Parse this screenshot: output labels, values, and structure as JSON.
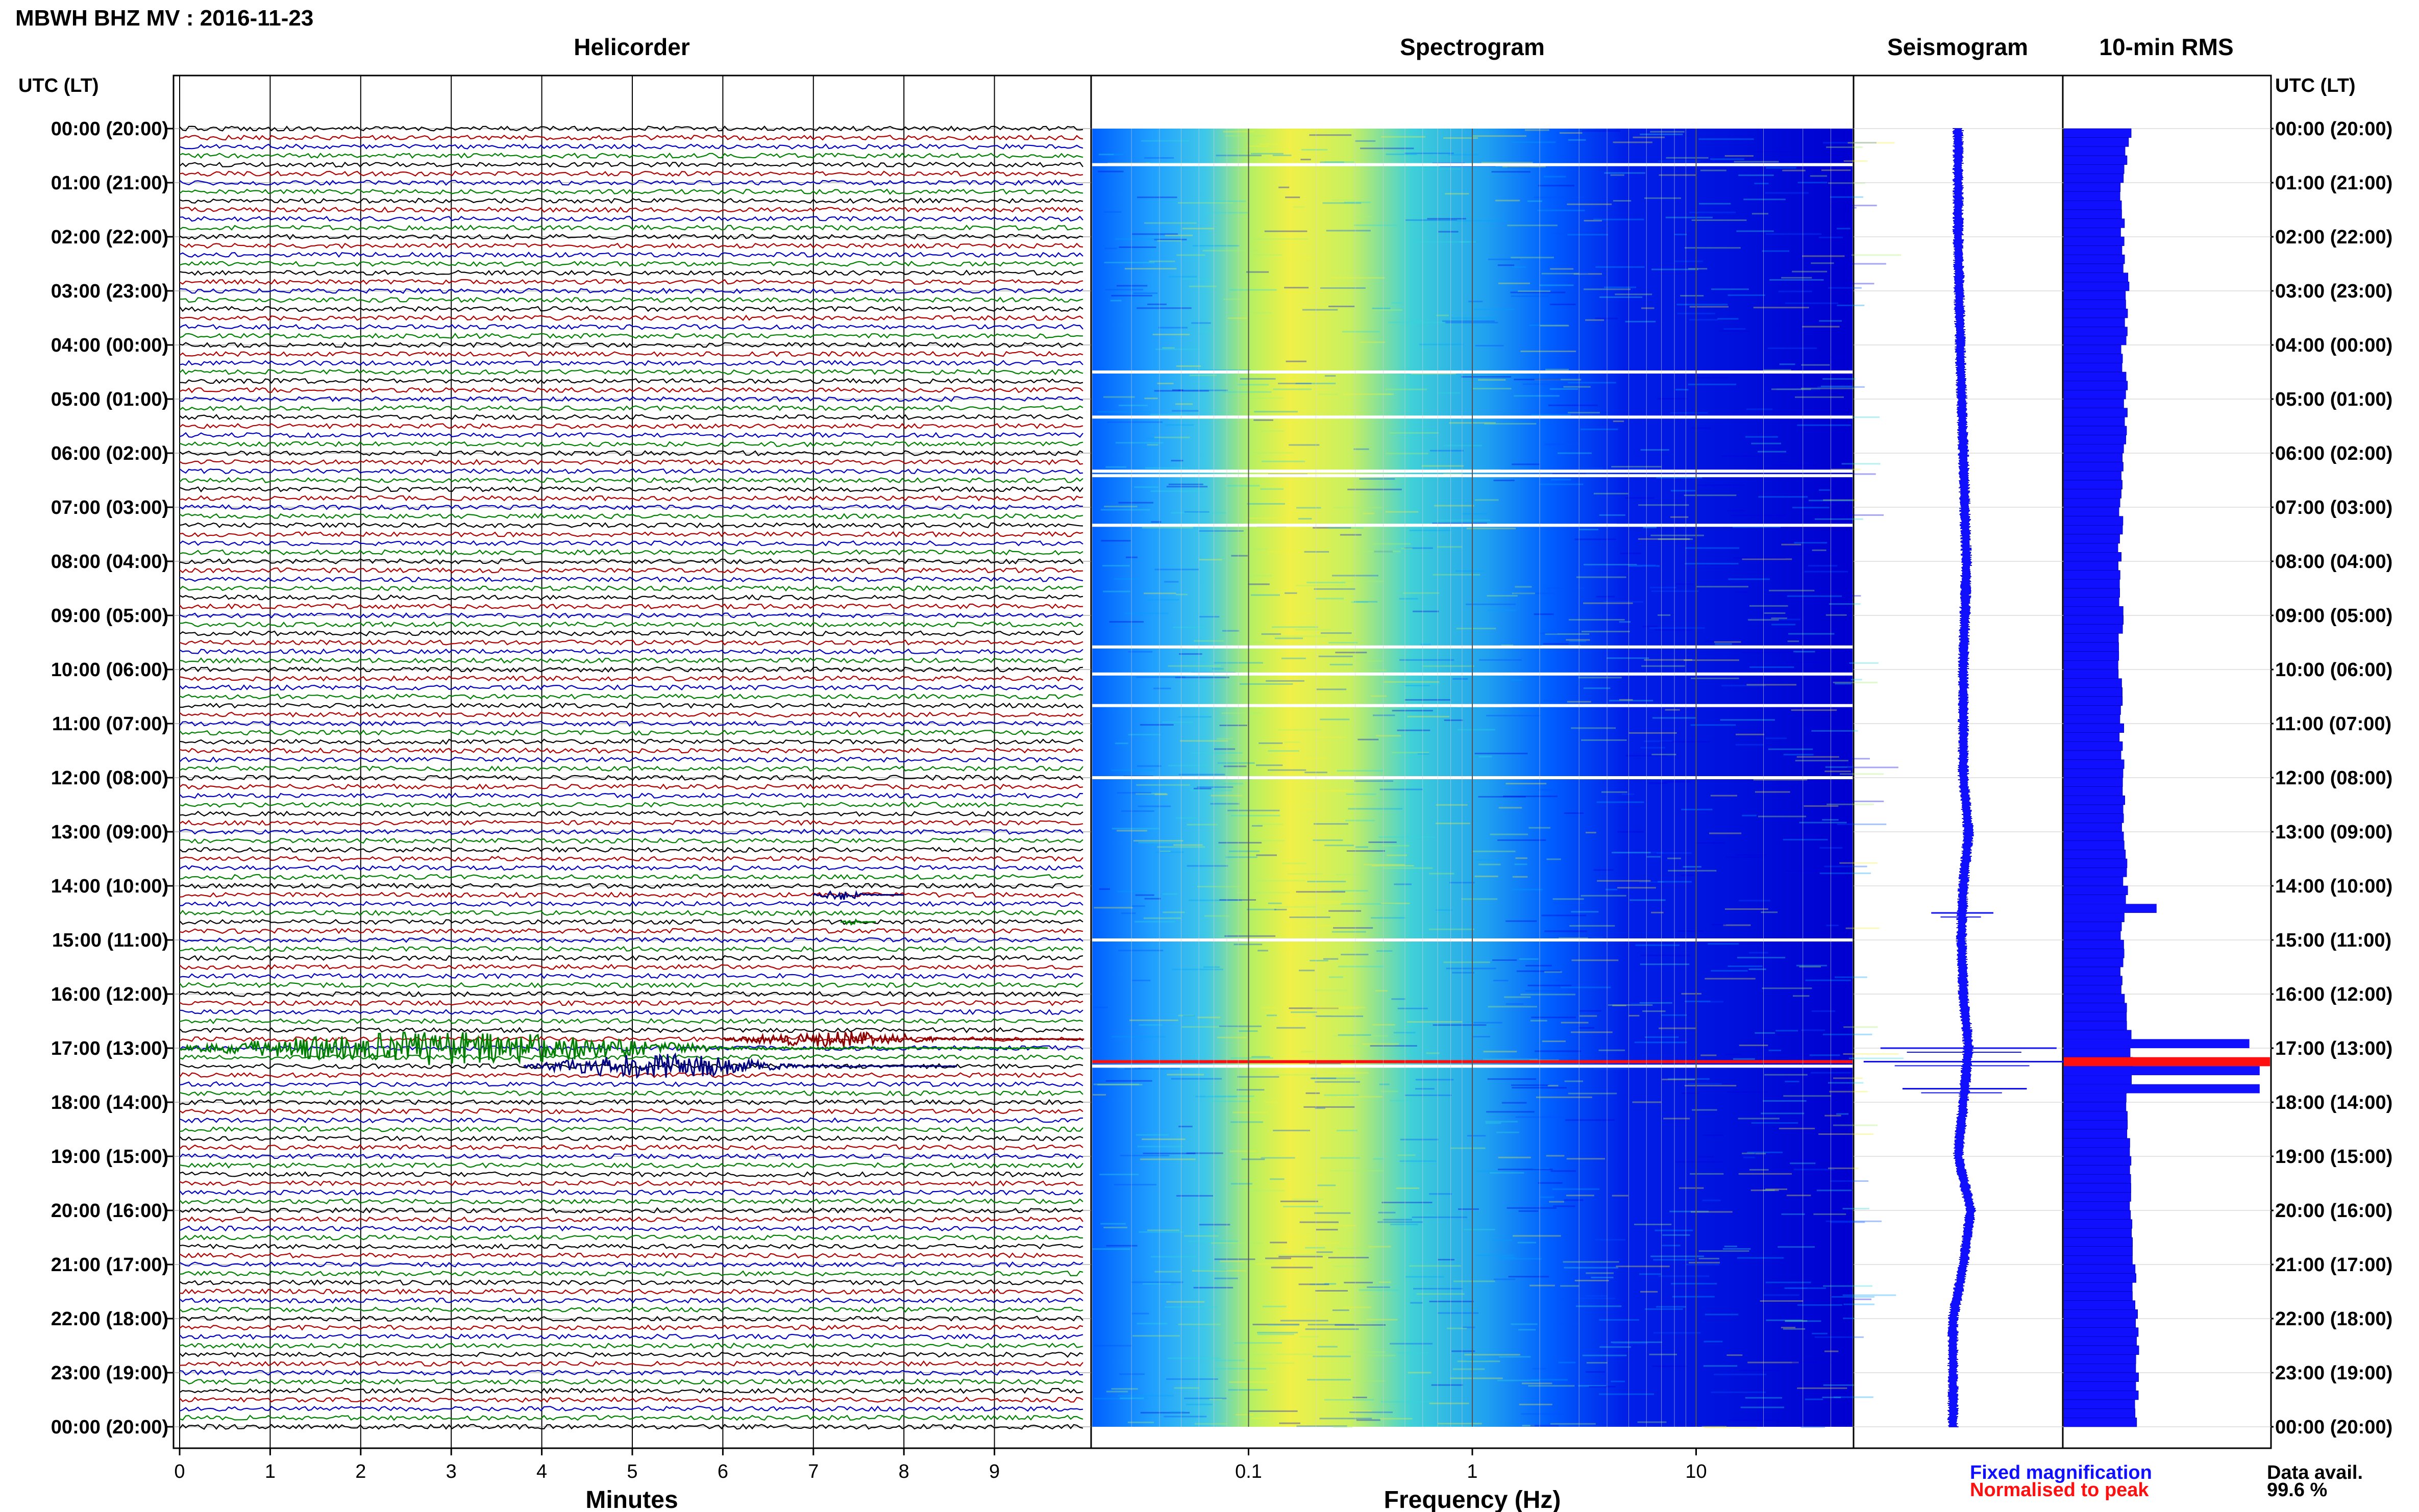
{
  "header": {
    "title": "MBWH BHZ MV : 2016-11-23"
  },
  "panels": {
    "helicorder_title": "Helicorder",
    "spectrogram_title": "Spectrogram",
    "seismogram_title": "Seismogram",
    "rms_title": "10-min RMS"
  },
  "axes": {
    "left_header": "UTC (LT)",
    "right_header": "UTC (LT)",
    "time_labels": [
      "00:00 (20:00)",
      "01:00 (21:00)",
      "02:00 (22:00)",
      "03:00 (23:00)",
      "04:00 (00:00)",
      "05:00 (01:00)",
      "06:00 (02:00)",
      "07:00 (03:00)",
      "08:00 (04:00)",
      "09:00 (05:00)",
      "10:00 (06:00)",
      "11:00 (07:00)",
      "12:00 (08:00)",
      "13:00 (09:00)",
      "14:00 (10:00)",
      "15:00 (11:00)",
      "16:00 (12:00)",
      "17:00 (13:00)",
      "18:00 (14:00)",
      "19:00 (15:00)",
      "20:00 (16:00)",
      "21:00 (17:00)",
      "22:00 (18:00)",
      "23:00 (19:00)",
      "00:00 (20:00)"
    ],
    "minutes_ticks": [
      "0",
      "1",
      "2",
      "3",
      "4",
      "5",
      "6",
      "7",
      "8",
      "9"
    ],
    "minutes_label": "Minutes",
    "freq_ticks": [
      "0.1",
      "1",
      "10"
    ],
    "freq_label": "Frequency (Hz)"
  },
  "legend": {
    "fixed": "Fixed magnification",
    "normalised": "Normalised to peak",
    "avail_label": "Data avail.",
    "avail_value": "99.6 %",
    "fixed_color": "#1010ff",
    "normalised_color": "#ff1010"
  },
  "chart_data": [
    {
      "type": "line",
      "name": "helicorder",
      "x_unit": "minutes",
      "xlim": [
        0,
        10
      ],
      "rows_per_hour": 6,
      "trace_colors": [
        "#000000",
        "#b00000",
        "#0000c0",
        "#008000"
      ],
      "events": [
        {
          "time_utc": "14:10",
          "start_min": 7.0,
          "end_min": 8.0,
          "peak_amp": 0.35,
          "color": "#000080"
        },
        {
          "time_utc": "14:40",
          "start_min": 7.3,
          "end_min": 7.7,
          "peak_amp": 0.2,
          "color": "#008000"
        },
        {
          "time_utc": "16:50",
          "start_min": 6.0,
          "end_min": 10.0,
          "peak_amp": 0.6,
          "color": "#8b0000"
        },
        {
          "time_utc": "17:00",
          "start_min": 0.0,
          "end_min": 9.6,
          "peak_amp": 1.2,
          "color": "#008000"
        },
        {
          "time_utc": "17:20",
          "start_min": 3.8,
          "end_min": 8.6,
          "peak_amp": 0.9,
          "color": "#000080"
        }
      ]
    },
    {
      "type": "heatmap",
      "name": "spectrogram",
      "x_scale": "log",
      "xlim": [
        0.02,
        50
      ],
      "colormap": [
        "#0000e0",
        "#0050ff",
        "#00a0ff",
        "#30d8e0",
        "#a8f070",
        "#f0f040"
      ],
      "band_peaks": [
        {
          "freq_hz": 0.25,
          "level": 0.95
        },
        {
          "freq_hz": 1.5,
          "level": 0.7
        },
        {
          "freq_hz": 4.0,
          "level": 0.35
        },
        {
          "freq_hz": 10.0,
          "level": 0.15
        }
      ],
      "gaps_utc": [
        "00:40",
        "04:30",
        "05:20",
        "06:20",
        "06:25",
        "07:20",
        "09:35",
        "10:05",
        "10:40",
        "12:00",
        "15:00",
        "17:20"
      ],
      "event_line_utc": "17:15"
    },
    {
      "type": "line",
      "name": "seismogram",
      "xlim": [
        -1,
        1
      ],
      "color": "#1010ff",
      "time_utc": [
        "00:00",
        "02:00",
        "04:00",
        "06:00",
        "08:00",
        "10:00",
        "12:00",
        "13:00",
        "14:00",
        "15:00",
        "16:00",
        "17:00",
        "18:00",
        "19:00",
        "20:00",
        "21:00",
        "22:00",
        "23:00",
        "24:00"
      ],
      "baseline": [
        0.0,
        0.0,
        0.02,
        0.05,
        0.08,
        0.05,
        0.05,
        0.1,
        0.05,
        0.03,
        0.05,
        0.1,
        0.05,
        0.0,
        0.12,
        0.05,
        -0.05,
        -0.05,
        -0.05
      ],
      "spikes": [
        {
          "time_utc": "14:30",
          "amp": 0.3
        },
        {
          "time_utc": "17:00",
          "amp": 0.85
        },
        {
          "time_utc": "17:15",
          "amp": 1.0
        },
        {
          "time_utc": "17:45",
          "amp": 0.6
        }
      ]
    },
    {
      "type": "bar",
      "name": "10-min RMS",
      "orientation": "horizontal",
      "color": "#1010ff",
      "highlight_color": "#ff1010",
      "hourly_values": [
        0.32,
        0.28,
        0.29,
        0.31,
        0.29,
        0.3,
        0.29,
        0.28,
        0.27,
        0.28,
        0.27,
        0.28,
        0.29,
        0.29,
        0.3,
        0.28,
        0.29,
        0.33,
        0.31,
        0.32,
        0.33,
        0.34,
        0.35,
        0.36,
        0.34
      ],
      "peaks": [
        {
          "time_utc": "14:20",
          "value": 0.45
        },
        {
          "time_utc": "16:50",
          "value": 0.9
        },
        {
          "time_utc": "17:10",
          "value": 1.0,
          "highlight": true
        },
        {
          "time_utc": "17:20",
          "value": 0.95
        },
        {
          "time_utc": "17:40",
          "value": 0.95
        }
      ]
    }
  ]
}
